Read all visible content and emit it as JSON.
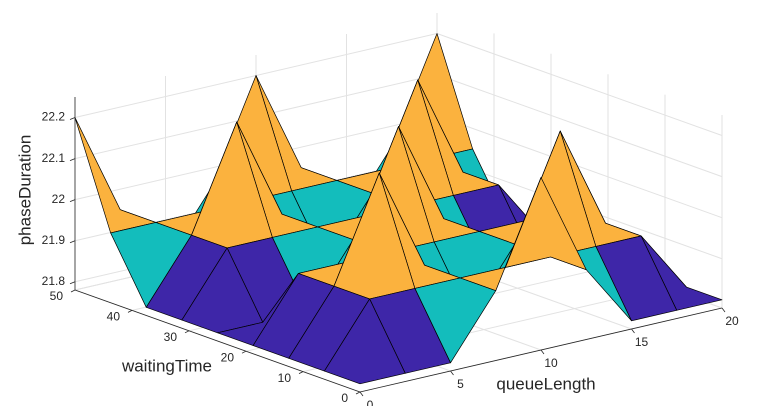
{
  "chart_data": {
    "type": "surface",
    "xlabel": "queueLength",
    "ylabel": "waitingTime",
    "zlabel": "phaseDuration",
    "x": [
      0,
      2.5,
      5,
      7.5,
      10,
      12.5,
      15,
      17.5,
      20
    ],
    "y": [
      0,
      6.25,
      12.5,
      18.75,
      25,
      31.25,
      37.5,
      43.75,
      50
    ],
    "z": [
      [
        21.8,
        21.8,
        21.8,
        21.95,
        22.2,
        21.95,
        21.8,
        21.8,
        21.8
      ],
      [
        21.8,
        21.95,
        21.95,
        21.95,
        21.95,
        21.95,
        21.95,
        21.95,
        21.8
      ],
      [
        21.8,
        21.95,
        22.2,
        21.95,
        21.8,
        21.95,
        22.2,
        21.95,
        21.8
      ],
      [
        21.8,
        21.95,
        21.95,
        21.95,
        21.95,
        21.95,
        21.95,
        21.95,
        21.8
      ],
      [
        21.8,
        21.8,
        21.8,
        21.95,
        22.2,
        21.95,
        21.8,
        21.8,
        21.8
      ],
      [
        21.8,
        21.95,
        21.95,
        21.95,
        21.95,
        21.95,
        21.95,
        21.95,
        21.8
      ],
      [
        21.8,
        21.95,
        22.2,
        21.95,
        21.8,
        21.95,
        22.2,
        21.95,
        21.8
      ],
      [
        21.95,
        21.95,
        21.95,
        21.95,
        21.95,
        21.95,
        21.95,
        21.95,
        21.95
      ],
      [
        22.2,
        21.95,
        21.8,
        21.95,
        22.2,
        21.95,
        21.8,
        21.95,
        22.2
      ]
    ],
    "xlim": [
      0,
      20
    ],
    "ylim": [
      0,
      50
    ],
    "zlim": [
      21.78,
      22.25
    ],
    "xticks": [
      0,
      5,
      10,
      15,
      20
    ],
    "yticks": [
      0,
      10,
      20,
      30,
      40,
      50
    ],
    "zticks": [
      21.8,
      21.9,
      22,
      22.1,
      22.2
    ],
    "clim": [
      21.8,
      22.2
    ],
    "colormap": [
      "#3e26a8",
      "#13bdbc",
      "#fbb23e",
      "#f9fb0e"
    ],
    "edge_color": "#000000",
    "grid": true
  }
}
